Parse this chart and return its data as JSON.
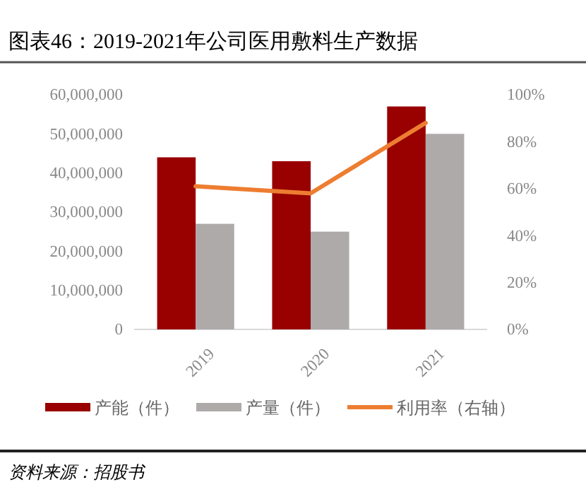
{
  "chart_data": {
    "type": "bar",
    "title": "图表46：2019-2021年公司医用敷料生产数据",
    "categories": [
      "2019",
      "2020",
      "2021"
    ],
    "series": [
      {
        "name": "产能（件）",
        "color": "#990000",
        "values": [
          44000000,
          43000000,
          57000000
        ]
      },
      {
        "name": "产量（件）",
        "color": "#aeaaaa",
        "values": [
          27000000,
          25000000,
          50000000
        ]
      },
      {
        "name": "利用率（右轴）",
        "type": "line",
        "axis": "y2",
        "color": "#ed7d31",
        "values": [
          61,
          58,
          88
        ]
      }
    ],
    "ylim": [
      0,
      60000000
    ],
    "yticks": [
      0,
      {
        "value": 10000000,
        "label": "10,000,000"
      },
      {
        "value": 20000000,
        "label": "20,000,000"
      },
      {
        "value": 30000000,
        "label": "30,000,000"
      },
      {
        "value": 40000000,
        "label": "40,000,000"
      },
      {
        "value": 50000000,
        "label": "50,000,000"
      },
      {
        "value": 60000000,
        "label": "60,000,000"
      }
    ],
    "y2lim": [
      0,
      100
    ],
    "y2ticks": [
      {
        "value": 0,
        "label": "0%"
      },
      {
        "value": 20,
        "label": "20%"
      },
      {
        "value": 40,
        "label": "40%"
      },
      {
        "value": 60,
        "label": "60%"
      },
      {
        "value": 80,
        "label": "80%"
      },
      {
        "value": 100,
        "label": "100%"
      }
    ],
    "legend": "bottom",
    "marker": "none",
    "annotations": [
      "资料来源：招股书"
    ]
  }
}
